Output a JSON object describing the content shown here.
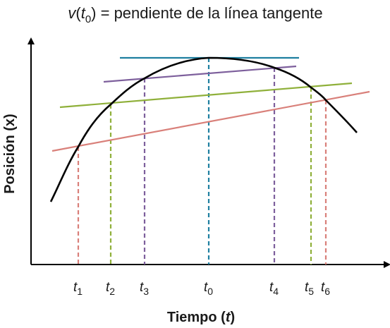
{
  "title": {
    "v": "v",
    "open": "(",
    "t": "t",
    "sub": "0",
    "rest": ") = pendiente de la línea tangente"
  },
  "y_axis_label": {
    "text": "Posición (",
    "var": "x",
    "close": ")"
  },
  "x_axis_label": {
    "text": "Tiempo (",
    "var": "t",
    "close": ")"
  },
  "time_markers": [
    {
      "label": "t",
      "sub": "1",
      "color": "#d9807a"
    },
    {
      "label": "t",
      "sub": "2",
      "color": "#8fb03a"
    },
    {
      "label": "t",
      "sub": "3",
      "color": "#7d5f9c"
    },
    {
      "label": "t",
      "sub": "0",
      "color": "#1e7fa0"
    },
    {
      "label": "t",
      "sub": "4",
      "color": "#7d5f9c"
    },
    {
      "label": "t",
      "sub": "5",
      "color": "#8fb03a"
    },
    {
      "label": "t",
      "sub": "6",
      "color": "#d9807a"
    }
  ],
  "colors": {
    "curve": "#000000",
    "axis": "#000000",
    "tangent_t0": "#1e7fa0",
    "secant_t3_t4": "#7d5f9c",
    "secant_t2_t5": "#8fb03a",
    "secant_t1_t6": "#d9807a"
  }
}
